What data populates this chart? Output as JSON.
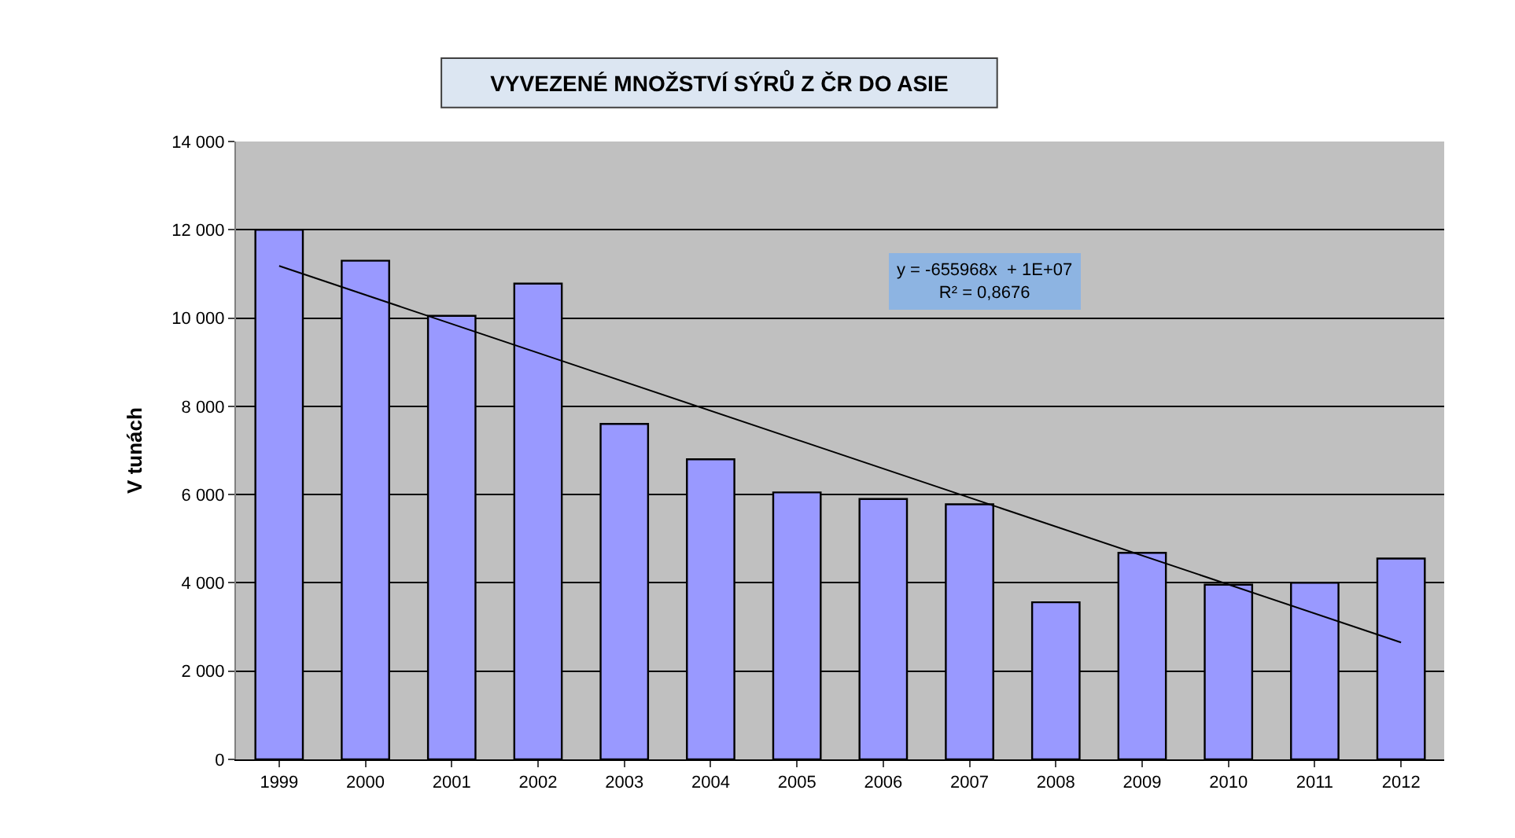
{
  "chart_data": {
    "type": "bar",
    "title": "VYVEZENÉ MNOŽSTVÍ SÝRŮ Z ČR DO ASIE",
    "ylabel": "V tunách",
    "x": [
      1999,
      2000,
      2001,
      2002,
      2003,
      2004,
      2005,
      2006,
      2007,
      2008,
      2009,
      2010,
      2011,
      2012
    ],
    "series": [
      {
        "color": "#9999ff",
        "values": [
          12000,
          11300,
          10050,
          10780,
          7600,
          6800,
          6050,
          5900,
          5780,
          3560,
          4680,
          3960,
          4000,
          4550
        ]
      },
      {
        "type": "line",
        "color": "#000000",
        "x": [
          1999,
          2012
        ],
        "values": [
          11180,
          2650
        ]
      }
    ],
    "annotations": [
      "y = -655968x  + 1E+07\nR² = 0,8676"
    ],
    "xlim": [
      1998.5,
      2012.5
    ],
    "xticks": [
      1999,
      2000,
      2001,
      2002,
      2003,
      2004,
      2005,
      2006,
      2007,
      2008,
      2009,
      2010,
      2011,
      2012
    ],
    "ylim": [
      0,
      14000
    ],
    "yticks": [
      {
        "value": 0,
        "label": "0"
      },
      {
        "value": 2000,
        "label": "2 000"
      },
      {
        "value": 4000,
        "label": "4 000"
      },
      {
        "value": 6000,
        "label": "6 000"
      },
      {
        "value": 8000,
        "label": "8 000"
      },
      {
        "value": 10000,
        "label": "10 000"
      },
      {
        "value": 12000,
        "label": "12 000"
      },
      {
        "value": 14000,
        "label": "14 000"
      }
    ],
    "grid": "y"
  }
}
